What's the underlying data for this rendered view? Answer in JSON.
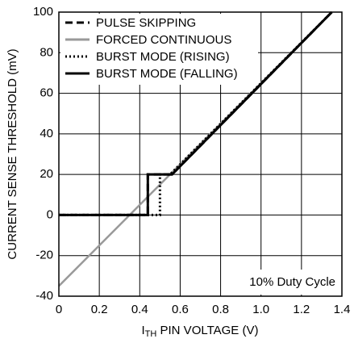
{
  "chart_data": {
    "type": "line",
    "y_label": "CURRENT SENSE THRESHOLD (mV)",
    "x_label": {
      "main": "I",
      "sub": "TH",
      "rest": " PIN VOLTAGE (V)"
    },
    "annotation": "10% Duty Cycle",
    "xlim": [
      0,
      1.4
    ],
    "xticks": [
      0,
      0.2,
      0.4,
      0.6,
      0.8,
      {
        "value": 1,
        "label": "1.0"
      },
      1.2,
      1.4
    ],
    "ylim": [
      -40,
      100
    ],
    "yticks": [
      -40,
      -20,
      0,
      20,
      40,
      60,
      80,
      100
    ],
    "grid": true,
    "legend": "upper left",
    "series": [
      {
        "name": "PULSE SKIPPING",
        "color": "#000000",
        "style": "dashed",
        "x": [
          0,
          0.44,
          0.44,
          0.56,
          1.35
        ],
        "values": [
          0,
          0,
          20,
          20,
          100
        ]
      },
      {
        "name": "FORCED CONTINUOUS",
        "color": "#999999",
        "style": "solid",
        "x": [
          0,
          1.35
        ],
        "values": [
          -35,
          100
        ]
      },
      {
        "name": "BURST MODE (RISING)",
        "color": "#000000",
        "style": "dotted",
        "x": [
          0,
          0.5,
          0.5,
          0.55,
          1.35
        ],
        "values": [
          0,
          0,
          20,
          20,
          100
        ]
      },
      {
        "name": "BURST MODE (FALLING)",
        "color": "#000000",
        "style": "solid",
        "x": [
          0,
          0.44,
          0.44,
          0.56,
          1.35
        ],
        "values": [
          0,
          0,
          20,
          20,
          100
        ]
      }
    ]
  }
}
